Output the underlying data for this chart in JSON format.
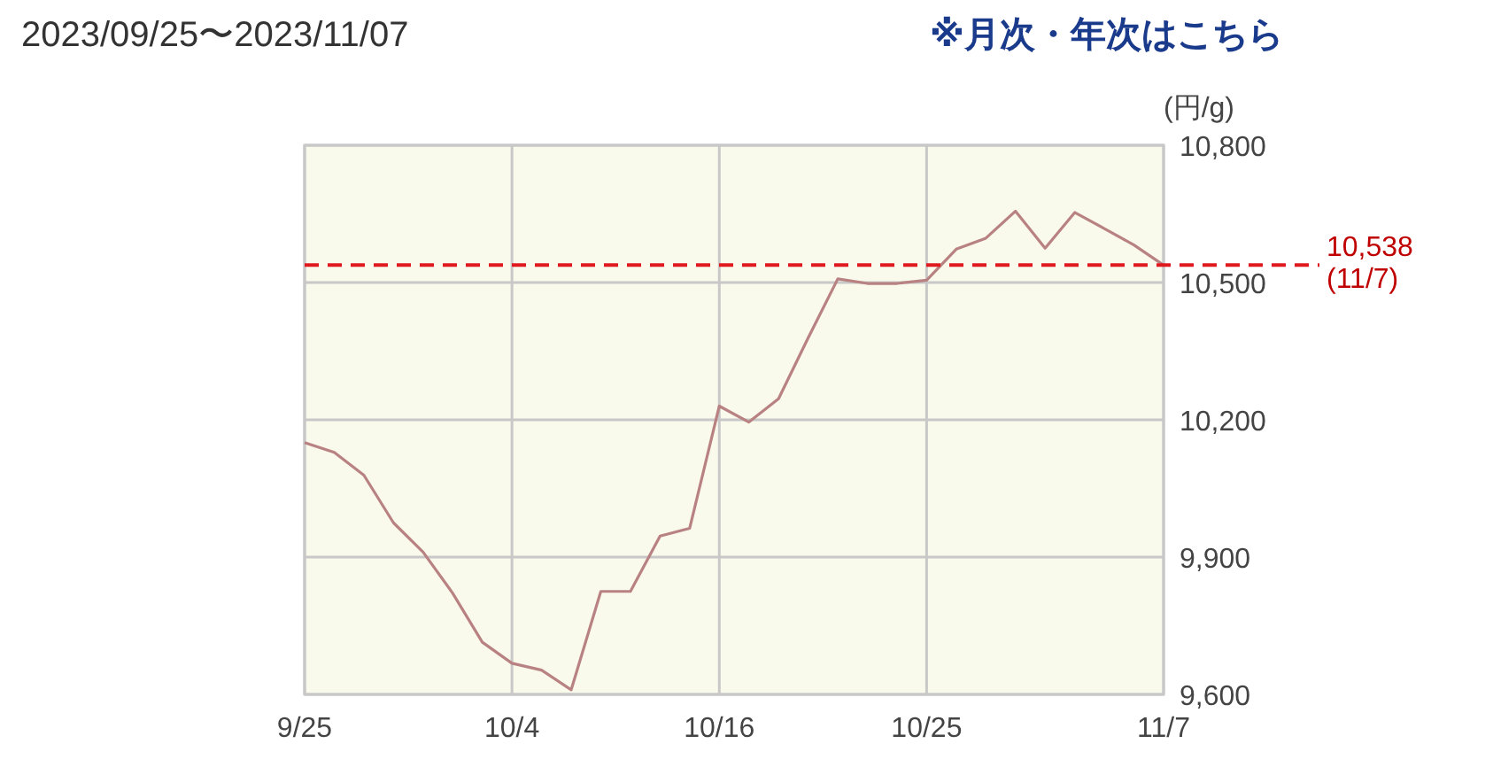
{
  "chart_data": {
    "type": "line",
    "title": "2023/09/25〜2023/11/07",
    "ylabel": "(円/g)",
    "annotations": [
      "※月次・年次はこちら"
    ],
    "categories": [
      "9/25",
      null,
      null,
      null,
      null,
      null,
      null,
      "10/4",
      null,
      null,
      null,
      null,
      null,
      null,
      "10/16",
      null,
      null,
      null,
      null,
      null,
      null,
      "10/25",
      null,
      null,
      null,
      null,
      null,
      null,
      null,
      "11/7"
    ],
    "series": [
      {
        "color": "#b98282",
        "values": [
          10150,
          10129,
          10079,
          9975,
          9911,
          9821,
          9714,
          9668,
          9653,
          9610,
          9825,
          9825,
          9946,
          9963,
          10230,
          10195,
          10246,
          10379,
          10508,
          10498,
          10498,
          10505,
          10573,
          10597,
          10656,
          10575,
          10653,
          10618,
          10582,
          10538
        ]
      }
    ],
    "ylim": [
      9600,
      10800
    ],
    "yticks": [
      {
        "value": 9600,
        "label": "9,600"
      },
      {
        "value": 9900,
        "label": "9,900"
      },
      {
        "value": 10200,
        "label": "10,200"
      },
      {
        "value": 10500,
        "label": "10,500"
      },
      {
        "value": 10800,
        "label": "10,800"
      }
    ],
    "ref_lines": [
      {
        "axis": "y",
        "value": 10538,
        "label": "10,538 (11/7)",
        "color": "#e0191f",
        "line_style": "dashed"
      }
    ],
    "grid": true,
    "marker": "none",
    "line_style": "solid"
  }
}
